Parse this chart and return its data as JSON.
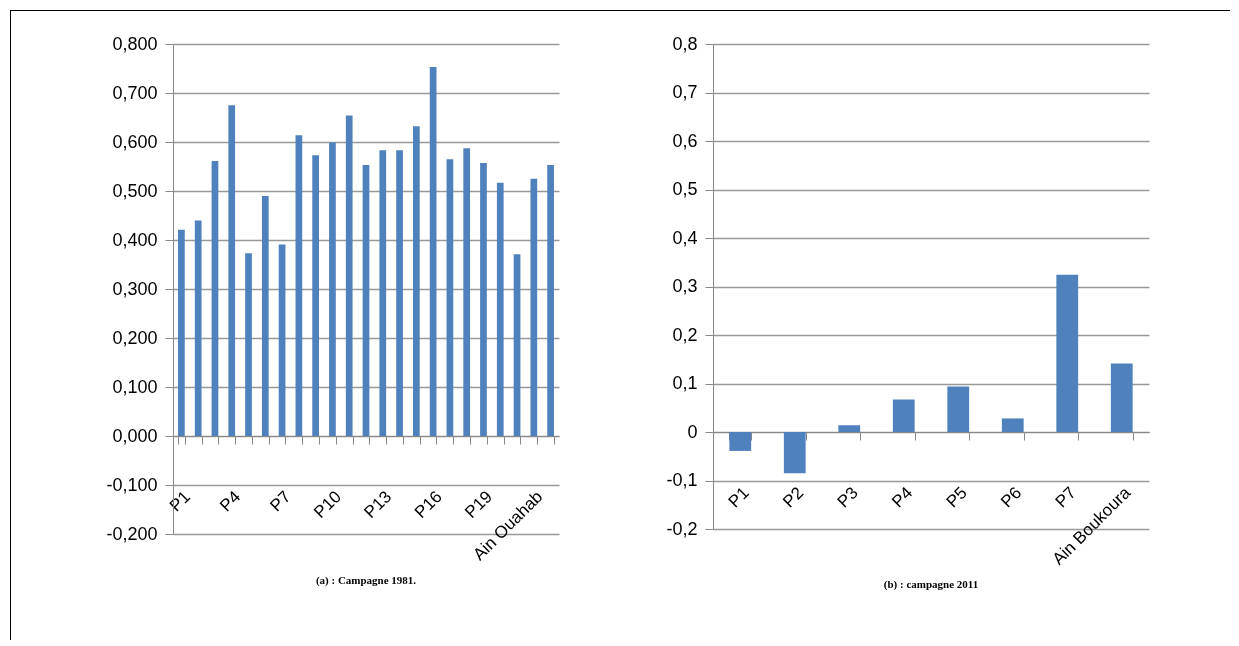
{
  "chart_data": [
    {
      "type": "bar",
      "title": "(a) : Campagne 1981.",
      "categories": [
        "P1",
        null,
        null,
        "P4",
        null,
        null,
        "P7",
        null,
        null,
        "P10",
        null,
        null,
        "P13",
        null,
        null,
        "P16",
        null,
        null,
        "P19",
        null,
        null,
        "Ain Ouahab",
        null
      ],
      "values": [
        0.421,
        0.44,
        0.561,
        0.675,
        0.373,
        0.49,
        0.391,
        0.614,
        0.573,
        0.599,
        0.654,
        0.553,
        0.583,
        0.583,
        0.632,
        0.753,
        0.565,
        0.587,
        0.557,
        0.517,
        0.371,
        0.525,
        0.553
      ],
      "color": "#4f81bd",
      "ylim": [
        -0.2,
        0.8
      ],
      "yticks": [
        {
          "value": -0.2,
          "label": "-0,200"
        },
        {
          "value": -0.1,
          "label": "-0,100"
        },
        {
          "value": 0,
          "label": "0,000"
        },
        {
          "value": 0.1,
          "label": "0,100"
        },
        {
          "value": 0.2,
          "label": "0,200"
        },
        {
          "value": 0.3,
          "label": "0,300"
        },
        {
          "value": 0.4,
          "label": "0,400"
        },
        {
          "value": 0.5,
          "label": "0,500"
        },
        {
          "value": 0.6,
          "label": "0,600"
        },
        {
          "value": 0.7,
          "label": "0,700"
        },
        {
          "value": 0.8,
          "label": "0,800"
        }
      ],
      "grid": "y"
    },
    {
      "type": "bar",
      "title": "(b) : campagne 2011",
      "categories": [
        "P1",
        "P2",
        "P3",
        "P4",
        "P5",
        "P6",
        "P7",
        "Ain Boukoura"
      ],
      "values": [
        -0.039,
        -0.085,
        0.014,
        0.067,
        0.094,
        0.028,
        0.324,
        0.141
      ],
      "color": "#4f81bd",
      "ylim": [
        -0.2,
        0.8
      ],
      "yticks": [
        {
          "value": -0.2,
          "label": "-0,2"
        },
        {
          "value": -0.1,
          "label": "-0,1"
        },
        {
          "value": 0,
          "label": "0"
        },
        {
          "value": 0.1,
          "label": "0,1"
        },
        {
          "value": 0.2,
          "label": "0,2"
        },
        {
          "value": 0.3,
          "label": "0,3"
        },
        {
          "value": 0.4,
          "label": "0,4"
        },
        {
          "value": 0.5,
          "label": "0,5"
        },
        {
          "value": 0.6,
          "label": "0,6"
        },
        {
          "value": 0.7,
          "label": "0,7"
        },
        {
          "value": 0.8,
          "label": "0,8"
        }
      ],
      "grid": "y"
    }
  ]
}
